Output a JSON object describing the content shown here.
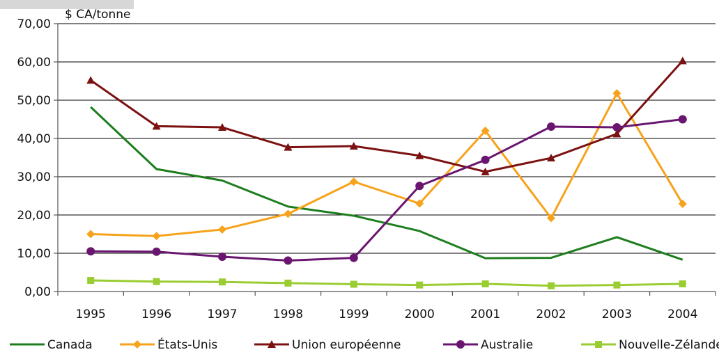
{
  "chart_data": {
    "type": "line",
    "ylabel": "$ CA/tonne",
    "categories": [
      "1995",
      "1996",
      "1997",
      "1998",
      "1999",
      "2000",
      "2001",
      "2002",
      "2003",
      "2004"
    ],
    "ylim": [
      0,
      70
    ],
    "yticks": [
      "0,00",
      "10,00",
      "20,00",
      "30,00",
      "40,00",
      "50,00",
      "60,00",
      "70,00"
    ],
    "grid": true,
    "legend_position": "bottom",
    "series": [
      {
        "name": "Canada",
        "color": "#1e7e1e",
        "marker": "none",
        "values": [
          48.2,
          32.0,
          29.0,
          22.2,
          19.8,
          15.8,
          8.7,
          8.8,
          14.2,
          8.3
        ]
      },
      {
        "name": "États-Unis",
        "color": "#f7a21b",
        "marker": "diamond",
        "values": [
          15.0,
          14.5,
          16.2,
          20.3,
          28.7,
          23.0,
          42.0,
          19.2,
          51.8,
          22.9
        ]
      },
      {
        "name": "Union européenne",
        "color": "#7b1111",
        "marker": "triangle",
        "values": [
          55.2,
          43.2,
          42.9,
          37.7,
          38.0,
          35.5,
          31.3,
          34.9,
          41.2,
          60.3
        ]
      },
      {
        "name": "Australie",
        "color": "#6a1670",
        "marker": "circle",
        "values": [
          10.5,
          10.4,
          9.1,
          8.1,
          8.8,
          27.6,
          34.4,
          43.1,
          42.9,
          45.0
        ]
      },
      {
        "name": "Nouvelle-Zélande",
        "color": "#9acd32",
        "marker": "square",
        "values": [
          2.9,
          2.6,
          2.5,
          2.2,
          1.9,
          1.7,
          2.0,
          1.5,
          1.7,
          2.0
        ]
      }
    ]
  }
}
